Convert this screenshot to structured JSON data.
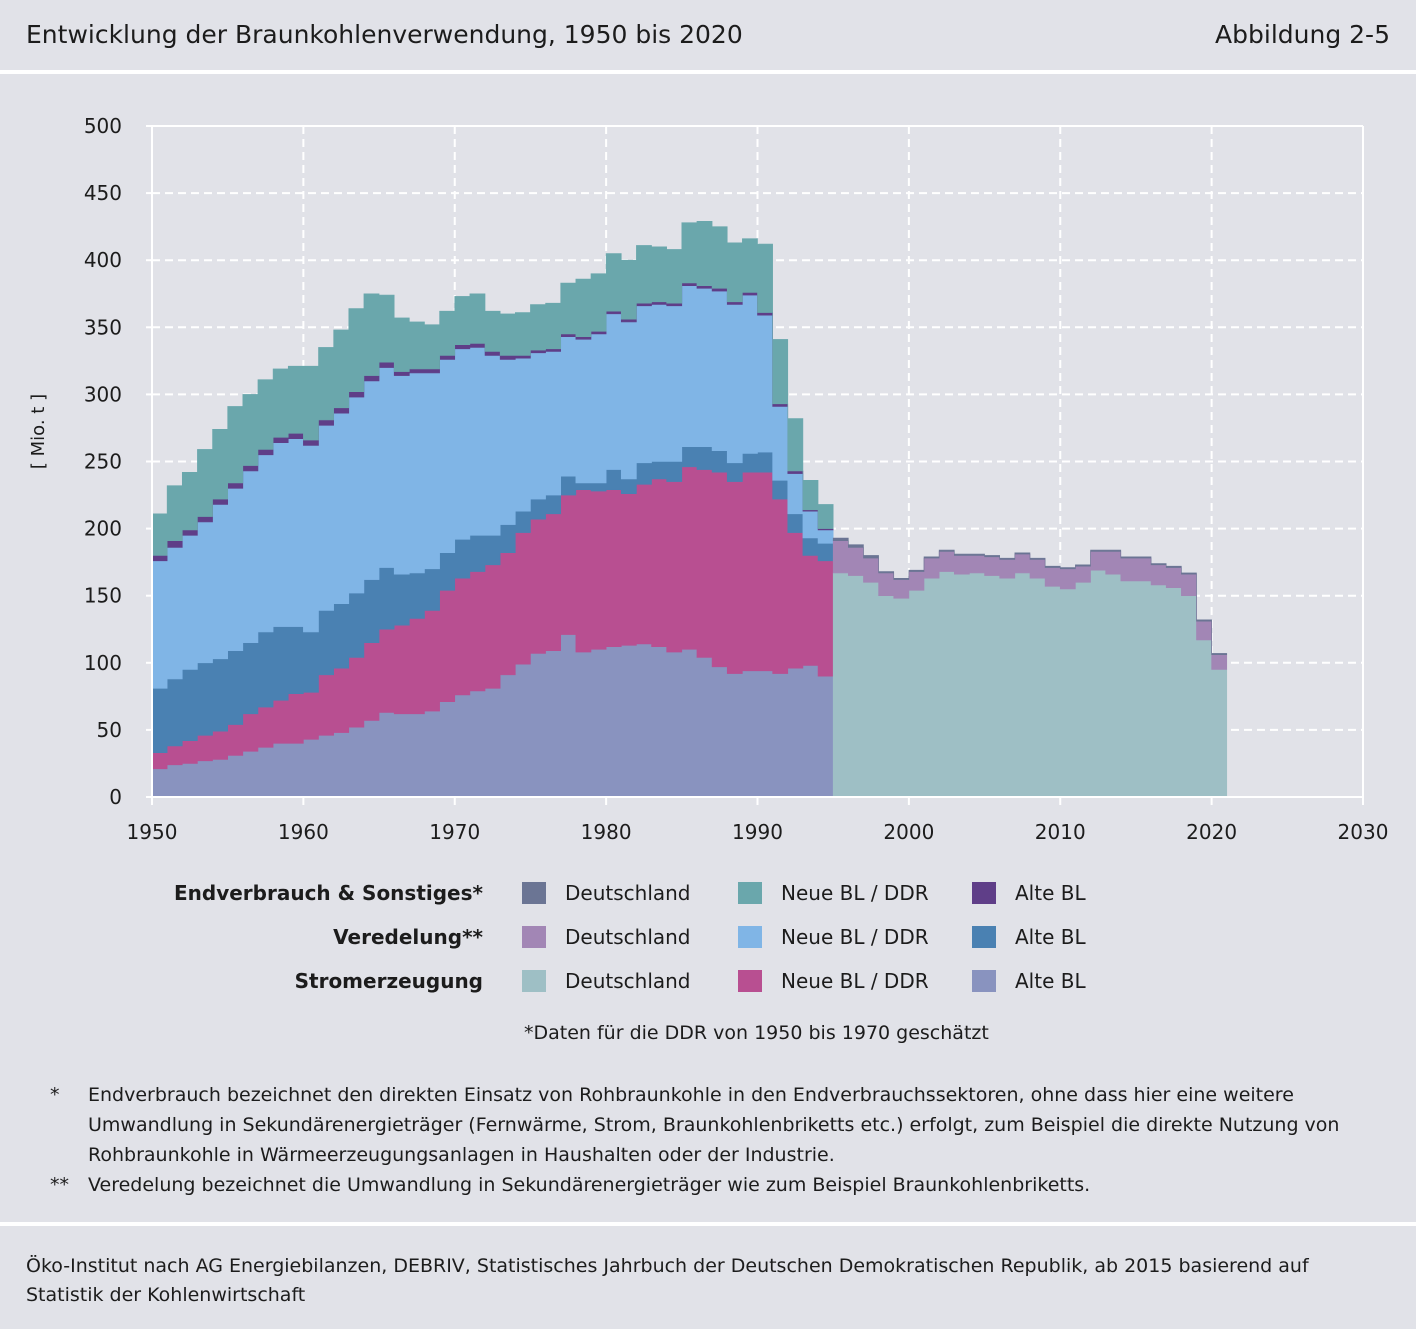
{
  "header": {
    "title": "Entwicklung der Braunkohlenverwendung, 1950 bis 2020",
    "figure_number": "Abbildung 2-5"
  },
  "chart_data": {
    "type": "area",
    "stacked": true,
    "step": true,
    "title": "Entwicklung der Braunkohlenverwendung, 1950 bis 2020",
    "ylabel": "[ Mio. t ]",
    "xlabel": "",
    "xlim": [
      1950,
      2030
    ],
    "ylim": [
      0,
      500
    ],
    "xticks": [
      1950,
      1960,
      1970,
      1980,
      1990,
      2000,
      2010,
      2020,
      2030
    ],
    "yticks": [
      0,
      50,
      100,
      150,
      200,
      250,
      300,
      350,
      400,
      450,
      500
    ],
    "grid": true,
    "segments": [
      {
        "years": [
          1950,
          1951,
          1952,
          1953,
          1954,
          1955,
          1956,
          1957,
          1958,
          1959,
          1960,
          1961,
          1962,
          1963,
          1964,
          1965,
          1966,
          1967,
          1968,
          1969,
          1970,
          1971,
          1972,
          1973,
          1974,
          1975,
          1976,
          1977,
          1978,
          1979,
          1980,
          1981,
          1982,
          1983,
          1984,
          1985,
          1986,
          1987,
          1988,
          1989,
          1990,
          1991,
          1992,
          1993,
          1994
        ],
        "series": [
          {
            "name": "Stromerzeugung – Alte BL",
            "color": "#8993bf",
            "values": [
              21,
              24,
              25,
              27,
              28,
              31,
              34,
              37,
              40,
              40,
              43,
              46,
              48,
              52,
              57,
              63,
              62,
              62,
              64,
              71,
              76,
              79,
              81,
              91,
              99,
              107,
              109,
              121,
              108,
              110,
              112,
              113,
              114,
              112,
              108,
              110,
              104,
              97,
              92,
              94,
              94,
              92,
              96,
              98,
              90
            ]
          },
          {
            "name": "Stromerzeugung – Neue BL / DDR",
            "color": "#b84f91",
            "values": [
              12,
              14,
              17,
              19,
              21,
              23,
              28,
              30,
              32,
              37,
              35,
              45,
              48,
              52,
              58,
              62,
              66,
              71,
              75,
              83,
              87,
              89,
              92,
              91,
              98,
              100,
              102,
              104,
              121,
              118,
              117,
              113,
              119,
              125,
              127,
              136,
              140,
              145,
              143,
              148,
              148,
              130,
              101,
              82,
              86
            ]
          },
          {
            "name": "Veredelung – Alte BL",
            "color": "#4a81b2",
            "values": [
              48,
              50,
              53,
              54,
              54,
              55,
              53,
              56,
              55,
              50,
              45,
              48,
              48,
              48,
              47,
              46,
              38,
              34,
              31,
              28,
              29,
              27,
              22,
              21,
              16,
              15,
              14,
              14,
              5,
              6,
              15,
              11,
              16,
              13,
              15,
              15,
              17,
              16,
              14,
              14,
              15,
              14,
              14,
              13,
              13
            ]
          },
          {
            "name": "Veredelung – Neue BL / DDR",
            "color": "#80b5e6",
            "values": [
              95,
              98,
              100,
              105,
              115,
              121,
              128,
              132,
              137,
              140,
              139,
              138,
              142,
              146,
              148,
              149,
              148,
              149,
              146,
              144,
              142,
              140,
              134,
              123,
              114,
              109,
              107,
              104,
              107,
              111,
              116,
              117,
              117,
              117,
              116,
              120,
              118,
              119,
              118,
              118,
              102,
              55,
              30,
              20,
              10
            ]
          },
          {
            "name": "Endverbrauch & Sonstiges – Alte BL",
            "color": "#5f3e88",
            "values": [
              4,
              5,
              4,
              4,
              4,
              4,
              4,
              4,
              4,
              4,
              4,
              4,
              4,
              4,
              4,
              4,
              3,
              3,
              3,
              3,
              3,
              3,
              3,
              3,
              2,
              2,
              2,
              2,
              2,
              2,
              2,
              2,
              2,
              2,
              2,
              2,
              2,
              2,
              2,
              2,
              2,
              2,
              2,
              1,
              1
            ]
          },
          {
            "name": "Endverbrauch & Sonstiges – Neue BL / DDR",
            "color": "#6aa7ac",
            "values": [
              31,
              41,
              43,
              50,
              52,
              57,
              53,
              52,
              51,
              50,
              55,
              54,
              58,
              62,
              61,
              50,
              40,
              35,
              33,
              33,
              36,
              37,
              30,
              31,
              32,
              34,
              34,
              38,
              43,
              43,
              43,
              44,
              43,
              41,
              40,
              45,
              48,
              46,
              44,
              40,
              51,
              48,
              39,
              22,
              18
            ]
          }
        ]
      },
      {
        "years": [
          1995,
          1996,
          1997,
          1998,
          1999,
          2000,
          2001,
          2002,
          2003,
          2004,
          2005,
          2006,
          2007,
          2008,
          2009,
          2010,
          2011,
          2012,
          2013,
          2014,
          2015,
          2016,
          2017,
          2018,
          2019,
          2020
        ],
        "series": [
          {
            "name": "Stromerzeugung – Deutschland",
            "color": "#9ebfc5",
            "values": [
              167,
              165,
              160,
              150,
              148,
              154,
              163,
              168,
              166,
              167,
              165,
              163,
              167,
              163,
              157,
              155,
              160,
              169,
              166,
              161,
              161,
              158,
              156,
              150,
              117,
              95
            ]
          },
          {
            "name": "Veredelung – Deutschland",
            "color": "#a286b5",
            "values": [
              24,
              21,
              18,
              17,
              14,
              14,
              15,
              15,
              14,
              13,
              14,
              14,
              14,
              14,
              14,
              15,
              12,
              14,
              17,
              17,
              17,
              15,
              15,
              16,
              14,
              11
            ]
          },
          {
            "name": "Endverbrauch & Sonstiges – Deutschland",
            "color": "#6b7594",
            "values": [
              2,
              2,
              2,
              1,
              1,
              1,
              1,
              1,
              1,
              1,
              1,
              1,
              1,
              1,
              1,
              1,
              1,
              1,
              1,
              1,
              1,
              1,
              1,
              1,
              1,
              1
            ]
          }
        ]
      }
    ],
    "legend": {
      "rows": [
        {
          "label": "Endverbrauch & Sonstiges",
          "suffix": "*",
          "items": [
            {
              "label": "Deutschland",
              "color": "#6b7594"
            },
            {
              "label": "Neue BL / DDR",
              "color": "#6aa7ac"
            },
            {
              "label": "Alte BL",
              "color": "#5f3e88"
            }
          ]
        },
        {
          "label": "Veredelung",
          "suffix": "**",
          "items": [
            {
              "label": "Deutschland",
              "color": "#a286b5"
            },
            {
              "label": "Neue BL / DDR",
              "color": "#80b5e6"
            },
            {
              "label": "Alte BL",
              "color": "#4a81b2"
            }
          ]
        },
        {
          "label": "Stromerzeugung",
          "suffix": "",
          "items": [
            {
              "label": "Deutschland",
              "color": "#9ebfc5"
            },
            {
              "label": "Neue BL / DDR",
              "color": "#b84f91"
            },
            {
              "label": "Alte BL",
              "color": "#8993bf"
            }
          ]
        }
      ],
      "footnote": "*Daten für die DDR von 1950 bis 1970 geschätzt"
    }
  },
  "notes": [
    {
      "mark": "*",
      "text": "Endverbrauch bezeichnet den direkten Einsatz von Rohbraunkohle in den Endverbrauchssektoren, ohne dass hier eine weitere Umwandlung in Sekundärenergieträger (Fernwärme, Strom, Braunkohlenbriketts etc.) erfolgt, zum Beispiel die direkte Nutzung von Rohbraunkohle in Wärmeerzeugungsanlagen in Haushalten oder der Industrie."
    },
    {
      "mark": "**",
      "text": "Veredelung bezeichnet die Umwandlung in Sekundärenergieträger wie zum Beispiel Braunkohlenbriketts."
    }
  ],
  "footer": {
    "source": "Öko-Institut nach AG Energiebilanzen, DEBRIV, Statistisches Jahrbuch der Deutschen Demokratischen Republik, ab 2015 basierend auf Statistik der Kohlenwirtschaft"
  }
}
